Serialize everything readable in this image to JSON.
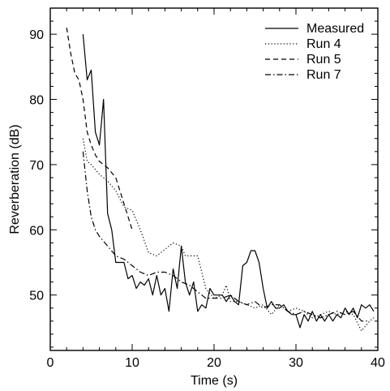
{
  "chart_data": {
    "type": "line",
    "xlabel": "Time (s)",
    "ylabel": "Reverberation (dB)",
    "xlim": [
      0,
      40
    ],
    "ylim": [
      41.5,
      94
    ],
    "xticks": [
      0,
      10,
      20,
      30,
      40
    ],
    "yticks": [
      50,
      60,
      70,
      80,
      90
    ],
    "grid": false,
    "legend": "top-right",
    "series": [
      {
        "name": "Measured",
        "style": "solid",
        "points": [
          [
            4,
            90
          ],
          [
            4.5,
            83
          ],
          [
            5,
            84.5
          ],
          [
            5.5,
            75
          ],
          [
            6,
            73
          ],
          [
            6.5,
            80
          ],
          [
            7,
            62.5
          ],
          [
            7.5,
            60
          ],
          [
            8,
            55
          ],
          [
            8.5,
            55
          ],
          [
            9,
            55
          ],
          [
            9.5,
            52.5
          ],
          [
            10,
            53
          ],
          [
            10.5,
            51
          ],
          [
            11,
            52
          ],
          [
            11.5,
            51.5
          ],
          [
            12,
            52.5
          ],
          [
            12.5,
            50
          ],
          [
            13,
            53
          ],
          [
            13.5,
            50
          ],
          [
            14,
            51
          ],
          [
            14.5,
            47.5
          ],
          [
            15,
            54
          ],
          [
            15.5,
            51
          ],
          [
            16,
            57.5
          ],
          [
            16.5,
            52
          ],
          [
            17,
            50
          ],
          [
            17.5,
            52
          ],
          [
            18,
            47.5
          ],
          [
            18.5,
            48.5
          ],
          [
            19,
            48
          ],
          [
            19.5,
            51
          ],
          [
            20,
            50
          ],
          [
            20.5,
            50
          ],
          [
            21,
            50
          ],
          [
            21.5,
            49
          ],
          [
            22,
            50
          ],
          [
            22.5,
            49
          ],
          [
            23,
            48.5
          ],
          [
            23.5,
            54.5
          ],
          [
            24,
            55
          ],
          [
            24.5,
            56.8
          ],
          [
            25,
            56.8
          ],
          [
            25.5,
            55
          ],
          [
            26,
            51
          ],
          [
            26.5,
            48
          ],
          [
            27,
            49
          ],
          [
            27.5,
            48
          ],
          [
            28,
            48
          ],
          [
            28.5,
            48.5
          ],
          [
            29,
            47.5
          ],
          [
            29.5,
            47
          ],
          [
            30,
            47
          ],
          [
            30.5,
            45
          ],
          [
            31,
            47
          ],
          [
            31.5,
            46
          ],
          [
            32,
            47.5
          ],
          [
            32.5,
            46
          ],
          [
            33,
            47
          ],
          [
            33.5,
            46
          ],
          [
            34,
            47
          ],
          [
            34.5,
            46
          ],
          [
            35,
            47
          ],
          [
            35.5,
            46.5
          ],
          [
            36,
            48
          ],
          [
            36.5,
            47
          ],
          [
            37,
            48
          ],
          [
            37.5,
            46.5
          ],
          [
            38,
            48.5
          ],
          [
            38.5,
            48
          ],
          [
            39,
            48.5
          ],
          [
            39.5,
            47.5
          ]
        ]
      },
      {
        "name": "Run 4",
        "style": "dotted",
        "points": [
          [
            4,
            74
          ],
          [
            4.5,
            70.5
          ],
          [
            5,
            70
          ],
          [
            6,
            68.5
          ],
          [
            7,
            67.5
          ],
          [
            8,
            66
          ],
          [
            9,
            63.5
          ],
          [
            10,
            63
          ],
          [
            11,
            60
          ],
          [
            12,
            56.5
          ],
          [
            13,
            56
          ],
          [
            14,
            57
          ],
          [
            15,
            58
          ],
          [
            16,
            57.5
          ],
          [
            16.5,
            56
          ],
          [
            17,
            56
          ],
          [
            18,
            56
          ],
          [
            19,
            51
          ],
          [
            20,
            49.5
          ],
          [
            21,
            50
          ],
          [
            21.5,
            51.5
          ],
          [
            22,
            49
          ],
          [
            23,
            49
          ],
          [
            24,
            48.5
          ],
          [
            25,
            48
          ],
          [
            26,
            48.5
          ],
          [
            27,
            47
          ],
          [
            28,
            48.5
          ],
          [
            29,
            47.5
          ],
          [
            30,
            48
          ],
          [
            31,
            47.5
          ],
          [
            32,
            46.5
          ],
          [
            33,
            47
          ],
          [
            34,
            47.5
          ],
          [
            35,
            47
          ],
          [
            36,
            47.5
          ],
          [
            37,
            47
          ],
          [
            38,
            44.5
          ],
          [
            39,
            46
          ],
          [
            39.5,
            46.5
          ]
        ]
      },
      {
        "name": "Run 5",
        "style": "dashed",
        "points": [
          [
            2,
            91
          ],
          [
            2.5,
            87
          ],
          [
            3,
            84
          ],
          [
            3.5,
            83
          ],
          [
            4,
            80
          ],
          [
            4.5,
            75
          ],
          [
            5,
            73
          ],
          [
            5.5,
            71.5
          ],
          [
            6,
            70.5
          ],
          [
            7,
            69.5
          ],
          [
            8,
            68
          ],
          [
            9,
            64
          ],
          [
            10,
            60
          ]
        ]
      },
      {
        "name": "Run 7",
        "style": "dashdot",
        "points": [
          [
            4,
            72
          ],
          [
            4.5,
            66
          ],
          [
            5,
            62
          ],
          [
            5.5,
            60
          ],
          [
            6,
            59
          ],
          [
            7,
            57.5
          ],
          [
            8,
            56
          ],
          [
            9,
            55.5
          ],
          [
            10,
            54.5
          ],
          [
            11,
            53.5
          ],
          [
            12,
            53
          ],
          [
            13,
            53.5
          ],
          [
            14,
            53.5
          ],
          [
            15,
            53
          ],
          [
            16,
            52
          ],
          [
            17,
            51.5
          ],
          [
            18,
            50.5
          ],
          [
            19,
            49.5
          ],
          [
            20,
            49.5
          ],
          [
            21,
            49.5
          ],
          [
            22,
            50
          ],
          [
            23,
            49
          ],
          [
            24,
            48.5
          ],
          [
            25,
            49
          ],
          [
            26,
            48
          ],
          [
            27,
            48.5
          ],
          [
            28,
            48.5
          ],
          [
            29,
            47.5
          ],
          [
            30,
            47
          ],
          [
            31,
            47.5
          ],
          [
            32,
            47
          ],
          [
            33,
            46.5
          ],
          [
            34,
            47
          ],
          [
            35,
            47.5
          ],
          [
            36,
            47
          ],
          [
            37,
            47.5
          ],
          [
            38,
            46
          ],
          [
            39,
            46
          ]
        ]
      }
    ]
  }
}
